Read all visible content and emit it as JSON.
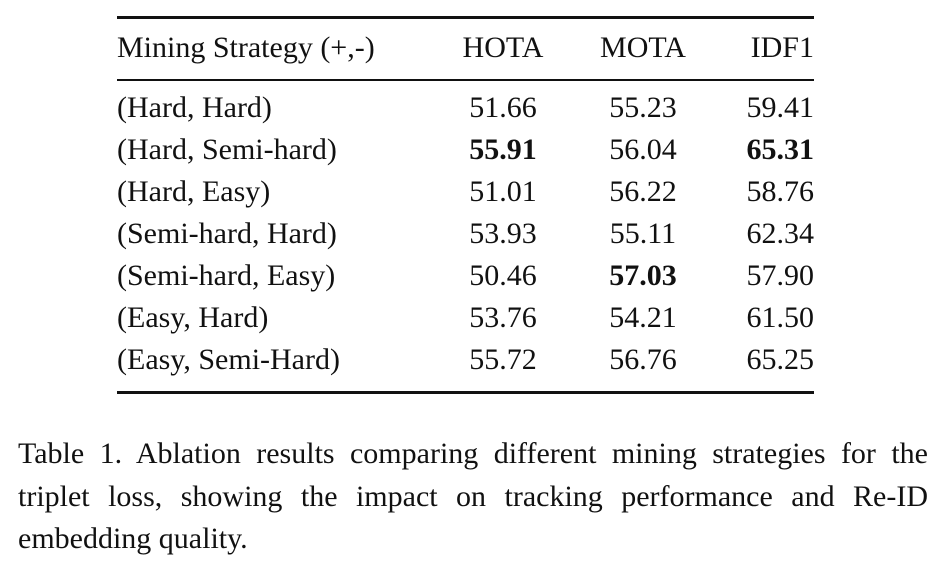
{
  "table": {
    "columns": [
      "Mining Strategy (+,-)",
      "HOTA",
      "MOTA",
      "IDF1"
    ],
    "rows": [
      {
        "cells": [
          "(Hard, Hard)",
          "51.66",
          "55.23",
          "59.41"
        ],
        "bold": [
          false,
          false,
          false,
          false
        ]
      },
      {
        "cells": [
          "(Hard, Semi-hard)",
          "55.91",
          "56.04",
          "65.31"
        ],
        "bold": [
          false,
          true,
          false,
          true
        ]
      },
      {
        "cells": [
          "(Hard, Easy)",
          "51.01",
          "56.22",
          "58.76"
        ],
        "bold": [
          false,
          false,
          false,
          false
        ]
      },
      {
        "cells": [
          "(Semi-hard, Hard)",
          "53.93",
          "55.11",
          "62.34"
        ],
        "bold": [
          false,
          false,
          false,
          false
        ]
      },
      {
        "cells": [
          "(Semi-hard, Easy)",
          "50.46",
          "57.03",
          "57.90"
        ],
        "bold": [
          false,
          false,
          true,
          false
        ]
      },
      {
        "cells": [
          "(Easy, Hard)",
          "53.76",
          "54.21",
          "61.50"
        ],
        "bold": [
          false,
          false,
          false,
          false
        ]
      },
      {
        "cells": [
          "(Easy, Semi-Hard)",
          "55.72",
          "56.76",
          "65.25"
        ],
        "bold": [
          false,
          false,
          false,
          false
        ]
      }
    ]
  },
  "caption": "Table 1. Ablation results comparing different mining strategies for the triplet loss, showing the impact on tracking performance and Re-ID embedding quality."
}
